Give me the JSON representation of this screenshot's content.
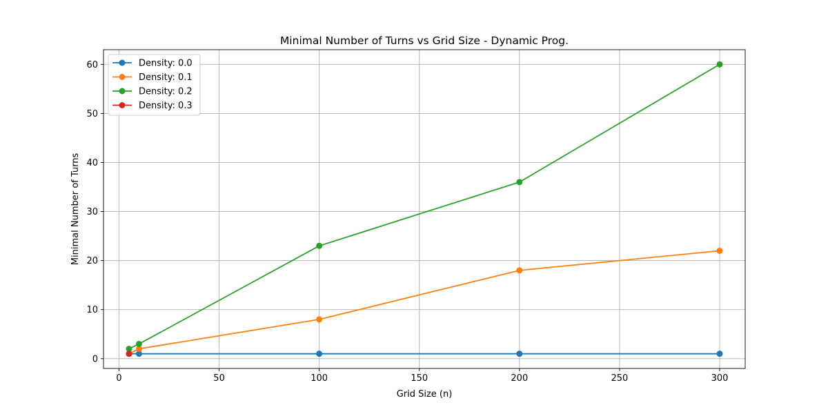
{
  "chart_data": {
    "type": "line",
    "title": "Minimal Number of Turns vs Grid Size - Dynamic Prog.",
    "xlabel": "Grid Size (n)",
    "ylabel": "Minimal Number of Turns",
    "xlim": [
      -7.75,
      312.75
    ],
    "ylim": [
      -2.0,
      63.0
    ],
    "xticks": [
      0,
      50,
      100,
      150,
      200,
      250,
      300
    ],
    "yticks": [
      0,
      10,
      20,
      30,
      40,
      50,
      60
    ],
    "grid": true,
    "legend_position": "top-left",
    "marker": "circle",
    "series": [
      {
        "name": "Density: 0.0",
        "color": "#1f77b4",
        "x": [
          5,
          10,
          100,
          200,
          300
        ],
        "y": [
          1,
          1,
          1,
          1,
          1
        ]
      },
      {
        "name": "Density: 0.1",
        "color": "#ff7f0e",
        "x": [
          5,
          10,
          100,
          200,
          300
        ],
        "y": [
          1,
          2,
          8,
          18,
          22
        ]
      },
      {
        "name": "Density: 0.2",
        "color": "#2ca02c",
        "x": [
          5,
          10,
          100,
          200,
          300
        ],
        "y": [
          2,
          3,
          23,
          36,
          60
        ]
      },
      {
        "name": "Density: 0.3",
        "color": "#d62728",
        "x": [
          5
        ],
        "y": [
          1
        ]
      }
    ]
  }
}
